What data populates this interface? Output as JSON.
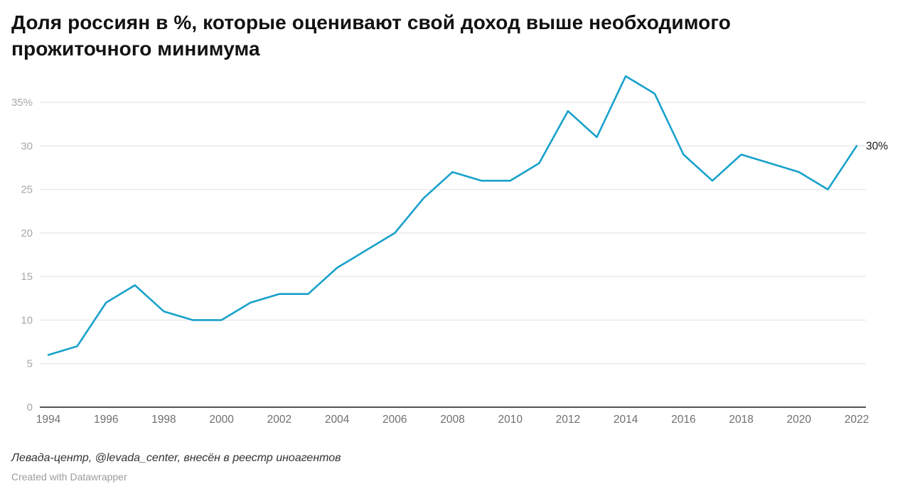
{
  "chart": {
    "title": "Доля россиян в %, которые оценивают свой доход выше необходимого прожиточного минимума",
    "footer_source": "Левада-центр, @levada_center, внесён в реестр иноагентов",
    "footer_credit": "Created with Datawrapper",
    "end_label": "30%"
  },
  "chart_data": {
    "type": "line",
    "title": "Доля россиян в %, которые оценивают свой доход выше необходимого прожиточного минимума",
    "x": [
      1994,
      1995,
      1996,
      1997,
      1998,
      1999,
      2000,
      2001,
      2002,
      2003,
      2004,
      2005,
      2006,
      2007,
      2008,
      2009,
      2010,
      2011,
      2012,
      2013,
      2014,
      2015,
      2016,
      2017,
      2018,
      2019,
      2020,
      2021,
      2022
    ],
    "values": [
      6,
      7,
      12,
      14,
      11,
      10,
      10,
      12,
      13,
      13,
      16,
      18,
      20,
      24,
      27,
      26,
      26,
      28,
      34,
      31,
      38,
      36,
      29,
      26,
      29,
      28,
      27,
      25,
      30
    ],
    "xlabel": "",
    "ylabel": "",
    "ylim": [
      0,
      38
    ],
    "yticks": [
      0,
      5,
      10,
      15,
      20,
      25,
      30,
      35
    ],
    "ytick_labels": [
      "0",
      "5",
      "10",
      "15",
      "20",
      "25",
      "30",
      "35%"
    ],
    "xticks": [
      1994,
      1996,
      1998,
      2000,
      2002,
      2004,
      2006,
      2008,
      2010,
      2012,
      2014,
      2016,
      2018,
      2020,
      2022
    ],
    "grid": true,
    "legend": "none",
    "annotations": [
      "30%"
    ],
    "line_color": "#18a1cb",
    "grid_color": "#e0e0e0",
    "axis_color": "#1a1a1a",
    "ytick_color": "#a8a8a8",
    "xtick_color": "#6f6f6f",
    "end_label_color": "#1a1a1a"
  }
}
